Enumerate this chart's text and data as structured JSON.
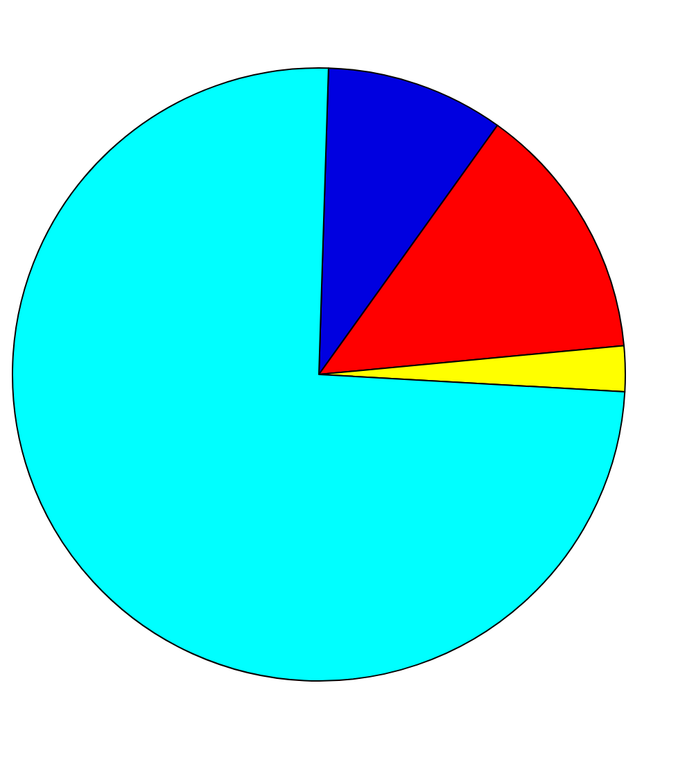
{
  "chart_data": {
    "type": "pie",
    "categories": [
      null,
      null,
      null,
      null
    ],
    "values": [
      9.4,
      13.6,
      2.4,
      74.6
    ],
    "colors": [
      "#0000e0",
      "#ff0000",
      "#ffff00",
      "#00ffff"
    ]
  }
}
